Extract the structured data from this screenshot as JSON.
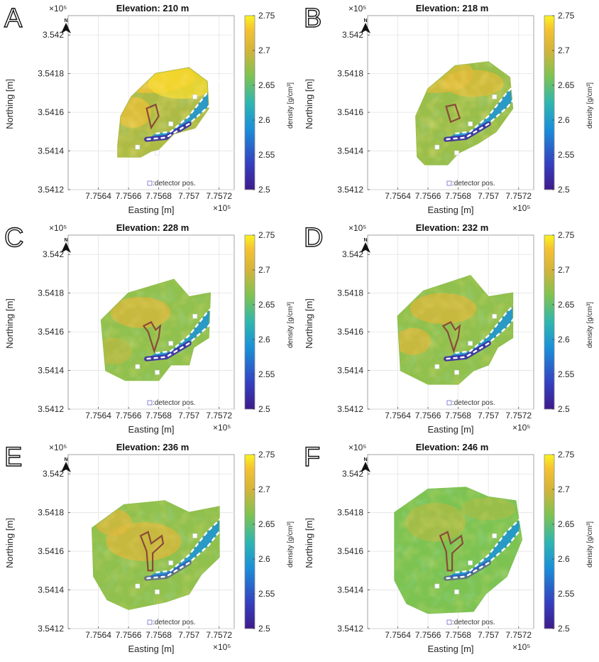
{
  "figure": {
    "colorbar_label": "density [g/cm³]",
    "detector_legend": ":detector pos.",
    "x_exponent": "×10⁵",
    "y_exponent": "×10⁵",
    "north_label": "N"
  },
  "chart_data": [
    {
      "panel": "A",
      "type": "heatmap",
      "title": "Elevation: 210 m",
      "elevation_m": 210,
      "xlabel": "Easting [m]",
      "ylabel": "Northing [m]",
      "xlim": [
        7.7562,
        7.7573
      ],
      "ylim": [
        3.5412,
        3.5421
      ],
      "xticks": [
        "7.7564",
        "7.7566",
        "7.7568",
        "7.757",
        "7.7572"
      ],
      "yticks": [
        "3.5412",
        "3.5414",
        "3.5416",
        "3.5418",
        "3.542"
      ],
      "colorbar": {
        "min": 2.5,
        "max": 2.75,
        "ticks": [
          "2.5",
          "2.55",
          "2.6",
          "2.65",
          "2.7",
          "2.75"
        ]
      },
      "base_density": 2.68
    },
    {
      "panel": "B",
      "type": "heatmap",
      "title": "Elevation: 218 m",
      "elevation_m": 218,
      "xlabel": "Easting [m]",
      "ylabel": "Northing [m]",
      "xlim": [
        7.7562,
        7.7573
      ],
      "ylim": [
        3.5412,
        3.5421
      ],
      "xticks": [
        "7.7564",
        "7.7566",
        "7.7568",
        "7.757",
        "7.7572"
      ],
      "yticks": [
        "3.5412",
        "3.5414",
        "3.5416",
        "3.5418",
        "3.542"
      ],
      "colorbar": {
        "min": 2.5,
        "max": 2.75,
        "ticks": [
          "2.5",
          "2.55",
          "2.6",
          "2.65",
          "2.7",
          "2.75"
        ]
      },
      "base_density": 2.67
    },
    {
      "panel": "C",
      "type": "heatmap",
      "title": "Elevation: 228 m",
      "elevation_m": 228,
      "xlabel": "Easting [m]",
      "ylabel": "Northing [m]",
      "xlim": [
        7.7562,
        7.7573
      ],
      "ylim": [
        3.5412,
        3.5421
      ],
      "xticks": [
        "7.7564",
        "7.7566",
        "7.7568",
        "7.757",
        "7.7572"
      ],
      "yticks": [
        "3.5412",
        "3.5414",
        "3.5416",
        "3.5418",
        "3.542"
      ],
      "colorbar": {
        "min": 2.5,
        "max": 2.75,
        "ticks": [
          "2.5",
          "2.55",
          "2.6",
          "2.65",
          "2.7",
          "2.75"
        ]
      },
      "base_density": 2.665
    },
    {
      "panel": "D",
      "type": "heatmap",
      "title": "Elevation: 232 m",
      "elevation_m": 232,
      "xlabel": "Easting [m]",
      "ylabel": "Northing [m]",
      "xlim": [
        7.7562,
        7.7573
      ],
      "ylim": [
        3.5412,
        3.5421
      ],
      "xticks": [
        "7.7564",
        "7.7566",
        "7.7568",
        "7.757",
        "7.7572"
      ],
      "yticks": [
        "3.5412",
        "3.5414",
        "3.5416",
        "3.5418",
        "3.542"
      ],
      "colorbar": {
        "min": 2.5,
        "max": 2.75,
        "ticks": [
          "2.5",
          "2.55",
          "2.6",
          "2.65",
          "2.7",
          "2.75"
        ]
      },
      "base_density": 2.665
    },
    {
      "panel": "E",
      "type": "heatmap",
      "title": "Elevation: 236 m",
      "elevation_m": 236,
      "xlabel": "Easting [m]",
      "ylabel": "Northing [m]",
      "xlim": [
        7.7562,
        7.7573
      ],
      "ylim": [
        3.5412,
        3.5421
      ],
      "xticks": [
        "7.7564",
        "7.7566",
        "7.7568",
        "7.757",
        "7.7572"
      ],
      "yticks": [
        "3.5412",
        "3.5414",
        "3.5416",
        "3.5418",
        "3.542"
      ],
      "colorbar": {
        "min": 2.5,
        "max": 2.75,
        "ticks": [
          "2.5",
          "2.55",
          "2.6",
          "2.65",
          "2.7",
          "2.75"
        ]
      },
      "base_density": 2.665
    },
    {
      "panel": "F",
      "type": "heatmap",
      "title": "Elevation: 246 m",
      "elevation_m": 246,
      "xlabel": "Easting [m]",
      "ylabel": "Northing [m]",
      "xlim": [
        7.7562,
        7.7573
      ],
      "ylim": [
        3.5412,
        3.5421
      ],
      "xticks": [
        "7.7564",
        "7.7566",
        "7.7568",
        "7.757",
        "7.7572"
      ],
      "yticks": [
        "3.5412",
        "3.5414",
        "3.5416",
        "3.5418",
        "3.542"
      ],
      "colorbar": {
        "min": 2.5,
        "max": 2.75,
        "ticks": [
          "2.5",
          "2.55",
          "2.6",
          "2.65",
          "2.7",
          "2.75"
        ]
      },
      "base_density": 2.655
    }
  ]
}
